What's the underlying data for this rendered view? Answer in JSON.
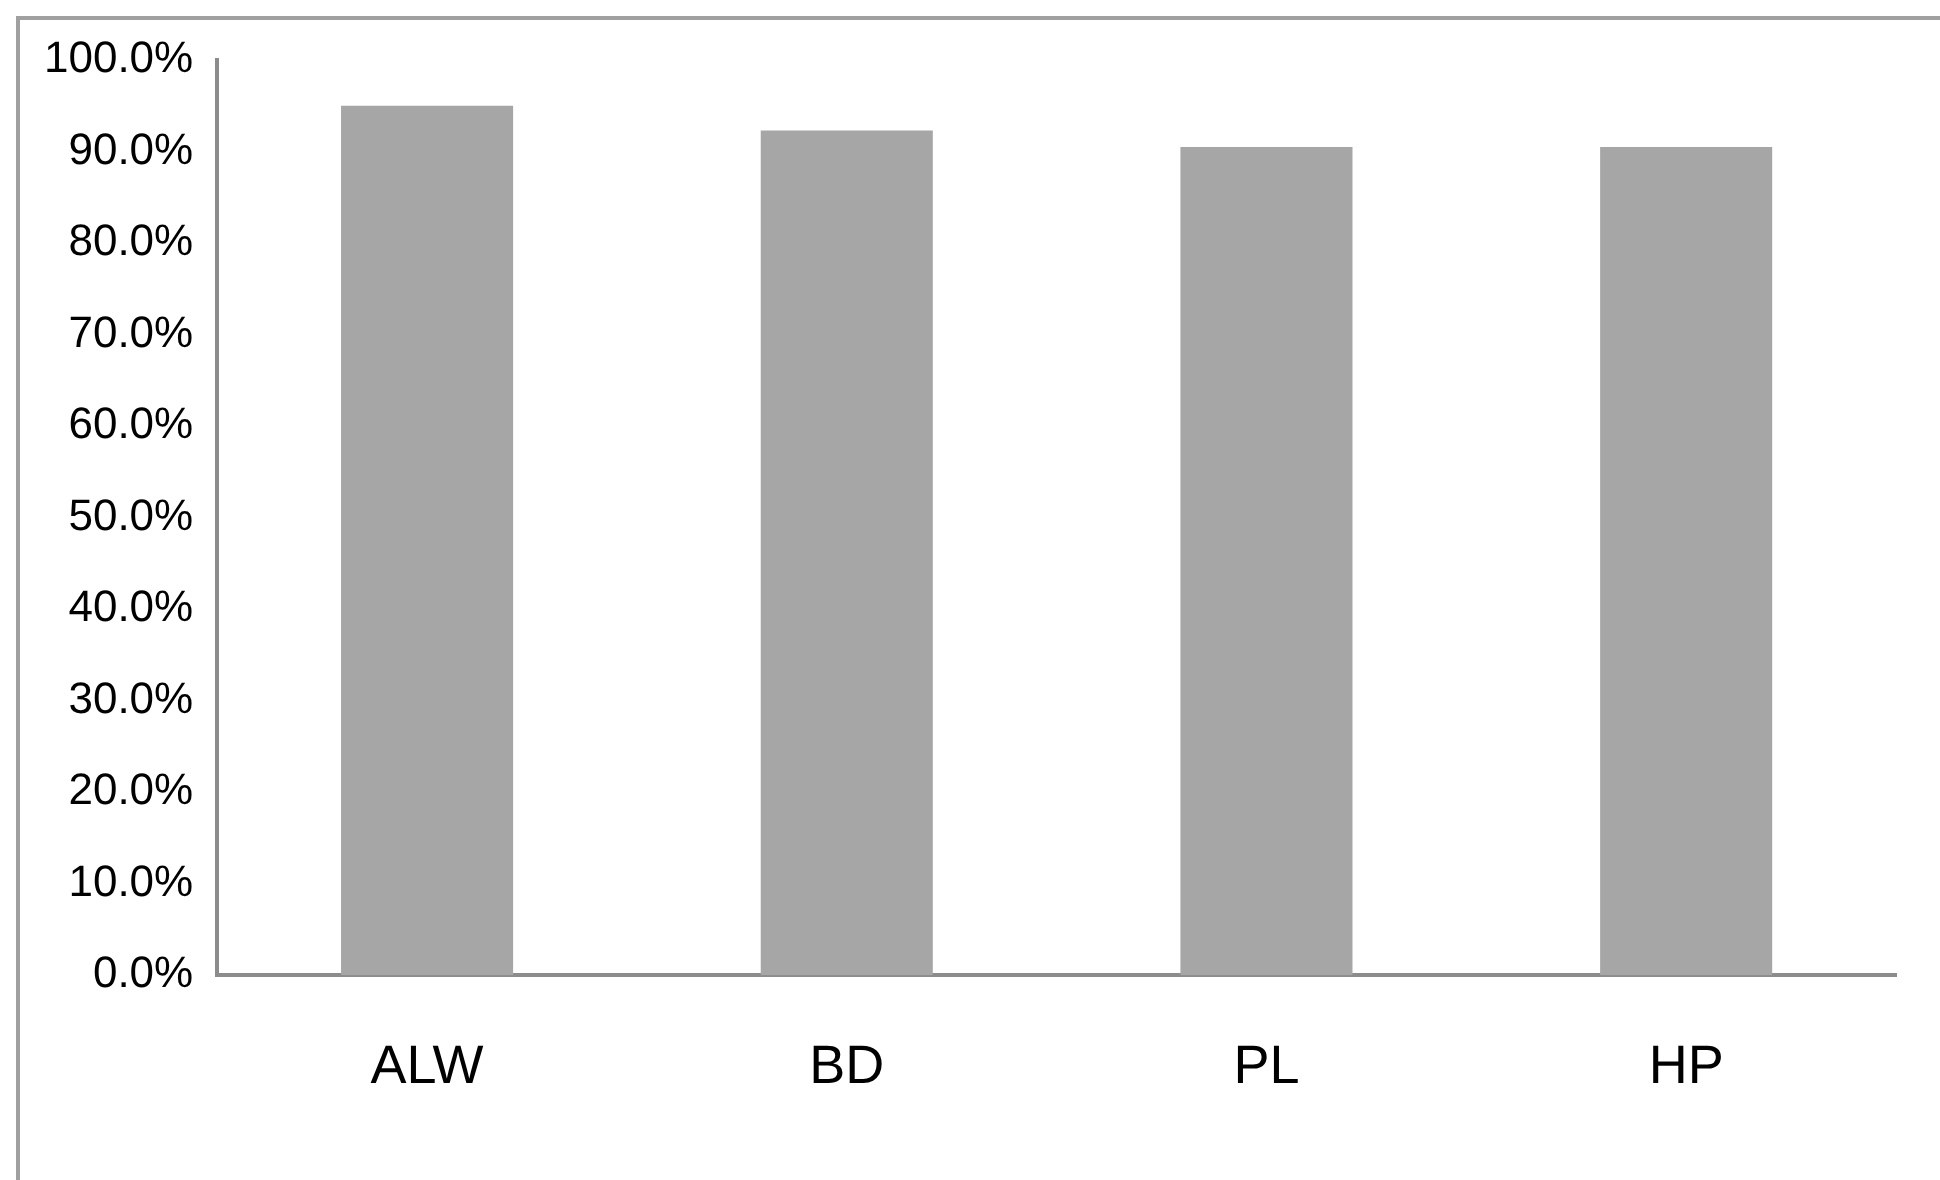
{
  "chart_data": {
    "type": "bar",
    "categories": [
      "ALW",
      "BD",
      "PL",
      "HP"
    ],
    "values": [
      95,
      92.3,
      90.5,
      90.5
    ],
    "color": "#a6a6a6",
    "ylim": [
      0,
      100
    ],
    "yticks": [
      {
        "value": 0,
        "label": "0.0%"
      },
      {
        "value": 10,
        "label": "10.0%"
      },
      {
        "value": 20,
        "label": "20.0%"
      },
      {
        "value": 30,
        "label": "30.0%"
      },
      {
        "value": 40,
        "label": "40.0%"
      },
      {
        "value": 50,
        "label": "50.0%"
      },
      {
        "value": 60,
        "label": "60.0%"
      },
      {
        "value": 70,
        "label": "70.0%"
      },
      {
        "value": 80,
        "label": "80.0%"
      },
      {
        "value": 90,
        "label": "90.0%"
      },
      {
        "value": 100,
        "label": "100.0%"
      }
    ],
    "grid": false,
    "legend": false
  }
}
